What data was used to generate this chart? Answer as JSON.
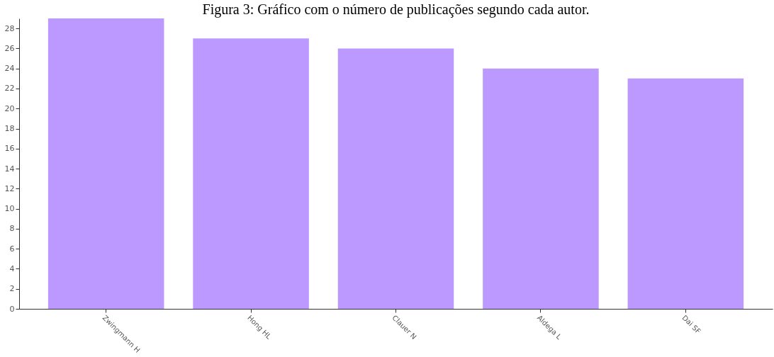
{
  "chart_data": {
    "type": "bar",
    "title": "Figura 3: Gráfico com o número de publicações segundo cada autor.",
    "categories": [
      "Zwingmann H",
      "Hong HL",
      "Clauer N",
      "Aldega L",
      "Dai SF"
    ],
    "values": [
      29,
      27,
      26,
      24,
      23
    ],
    "color": "#bb99ff",
    "ylim": [
      0,
      29
    ],
    "yticks": [
      0,
      2,
      4,
      6,
      8,
      10,
      12,
      14,
      16,
      18,
      20,
      22,
      24,
      26,
      28
    ],
    "grid": false
  }
}
